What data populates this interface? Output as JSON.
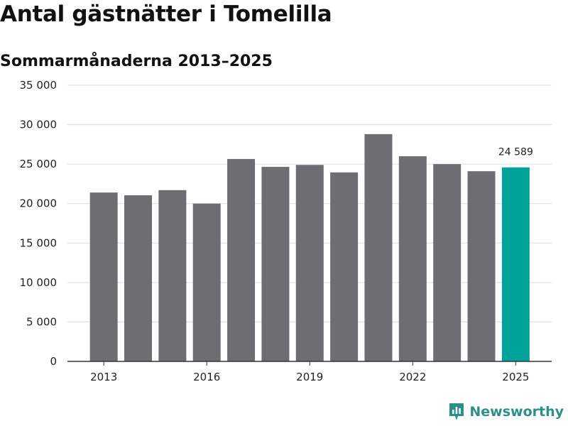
{
  "title": "Antal gästnätter i Tomelilla",
  "subtitle": "Sommarmånaderna 2013–2025",
  "brand": "Newsworthy",
  "colors": {
    "bar": "#6e6d72",
    "highlight": "#00a39a",
    "grid": "#dddddd",
    "axis": "#333333",
    "brand": "#2d8f8a"
  },
  "chart_data": {
    "type": "bar",
    "title": "Antal gästnätter i Tomelilla",
    "subtitle": "Sommarmånaderna 2013–2025",
    "categories": [
      "2013",
      "2014",
      "2015",
      "2016",
      "2017",
      "2018",
      "2019",
      "2020",
      "2021",
      "2022",
      "2023",
      "2024",
      "2025"
    ],
    "values": [
      21400,
      21050,
      21700,
      20000,
      25650,
      24650,
      24900,
      23950,
      28800,
      26000,
      25000,
      24100,
      24589
    ],
    "highlight_index": 12,
    "highlight_label": "24 589",
    "ylim": [
      0,
      35000
    ],
    "yticks": [
      0,
      5000,
      10000,
      15000,
      20000,
      25000,
      30000,
      35000
    ],
    "ytick_labels": [
      "0",
      "5 000",
      "10 000",
      "15 000",
      "20 000",
      "25 000",
      "30 000",
      "35 000"
    ],
    "xtick_labels": [
      "2013",
      "2016",
      "2019",
      "2022",
      "2025"
    ],
    "xtick_categories": [
      "2013",
      "2016",
      "2019",
      "2022",
      "2025"
    ],
    "xlabel": "",
    "ylabel": "",
    "grid": true,
    "legend": "none"
  }
}
